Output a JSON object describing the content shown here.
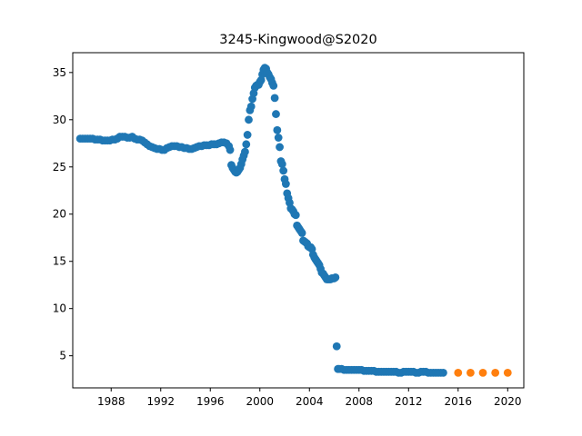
{
  "chart_data": {
    "type": "scatter",
    "title": "3245-Kingwood@S2020",
    "xlabel": "",
    "ylabel": "",
    "xlim": [
      1984.9,
      2021.3
    ],
    "ylim": [
      1.6,
      37.1
    ],
    "x_ticks": [
      1988,
      1992,
      1996,
      2000,
      2004,
      2008,
      2012,
      2016,
      2020
    ],
    "y_ticks": [
      5,
      10,
      15,
      20,
      25,
      30,
      35
    ],
    "grid": false,
    "series": [
      {
        "color": "#1f77b4",
        "x": [
          1985.5,
          1985.7,
          1985.9,
          1986.1,
          1986.3,
          1986.5,
          1986.7,
          1986.9,
          1987.1,
          1987.3,
          1987.5,
          1987.7,
          1987.9,
          1988.1,
          1988.3,
          1988.5,
          1988.7,
          1988.9,
          1989.1,
          1989.3,
          1989.5,
          1989.7,
          1989.9,
          1990.1,
          1990.3,
          1990.5,
          1990.7,
          1990.9,
          1991.1,
          1991.3,
          1991.5,
          1991.7,
          1991.9,
          1992.1,
          1992.3,
          1992.5,
          1992.7,
          1992.9,
          1993.1,
          1993.3,
          1993.5,
          1993.7,
          1993.9,
          1994.1,
          1994.3,
          1994.5,
          1994.7,
          1994.9,
          1995.1,
          1995.3,
          1995.5,
          1995.7,
          1995.9,
          1996.1,
          1996.3,
          1996.5,
          1996.7,
          1996.9,
          1997.1,
          1997.3,
          1997.5,
          1997.6,
          1997.7,
          1997.8,
          1997.9,
          1998.0,
          1998.1,
          1998.2,
          1998.3,
          1998.4,
          1998.5,
          1998.6,
          1998.7,
          1998.8,
          1998.9,
          1999.0,
          1999.1,
          1999.2,
          1999.3,
          1999.4,
          1999.5,
          1999.6,
          1999.7,
          1999.8,
          1999.9,
          2000.0,
          2000.1,
          2000.2,
          2000.3,
          2000.4,
          2000.5,
          2000.6,
          2000.7,
          2000.8,
          2000.9,
          2001.0,
          2001.1,
          2001.2,
          2001.3,
          2001.4,
          2001.5,
          2001.6,
          2001.7,
          2001.8,
          2001.9,
          2002.0,
          2002.1,
          2002.2,
          2002.3,
          2002.4,
          2002.5,
          2002.6,
          2002.7,
          2002.8,
          2002.9,
          2003.0,
          2003.1,
          2003.2,
          2003.3,
          2003.4,
          2003.5,
          2003.6,
          2003.7,
          2003.8,
          2003.9,
          2004.0,
          2004.1,
          2004.2,
          2004.3,
          2004.4,
          2004.5,
          2004.6,
          2004.7,
          2004.8,
          2004.9,
          2005.0,
          2005.1,
          2005.2,
          2005.3,
          2005.4,
          2005.5,
          2005.6,
          2005.7,
          2005.8,
          2005.9,
          2006.0,
          2006.1,
          2006.2,
          2006.3,
          2006.4,
          2006.6,
          2006.8,
          2007.0,
          2007.2,
          2007.4,
          2007.6,
          2007.8,
          2008.0,
          2008.2,
          2008.4,
          2008.6,
          2008.8,
          2009.0,
          2009.2,
          2009.4,
          2009.6,
          2009.8,
          2010.0,
          2010.2,
          2010.4,
          2010.6,
          2010.8,
          2011.0,
          2011.2,
          2011.4,
          2011.6,
          2011.8,
          2012.0,
          2012.2,
          2012.4,
          2012.6,
          2012.8,
          2013.0,
          2013.2,
          2013.4,
          2013.6,
          2013.8,
          2014.0,
          2014.2,
          2014.4,
          2014.6,
          2014.8
        ],
        "y": [
          28.0,
          28.0,
          28.0,
          28.0,
          28.0,
          28.0,
          27.9,
          27.9,
          27.9,
          27.8,
          27.8,
          27.8,
          27.8,
          27.9,
          27.9,
          28.0,
          28.2,
          28.2,
          28.2,
          28.1,
          28.1,
          28.2,
          28.0,
          27.9,
          27.9,
          27.8,
          27.6,
          27.4,
          27.2,
          27.1,
          27.0,
          26.9,
          26.9,
          26.8,
          26.8,
          27.0,
          27.1,
          27.2,
          27.2,
          27.2,
          27.1,
          27.1,
          27.0,
          27.0,
          26.9,
          26.9,
          27.0,
          27.1,
          27.2,
          27.2,
          27.3,
          27.3,
          27.3,
          27.4,
          27.4,
          27.4,
          27.5,
          27.6,
          27.6,
          27.5,
          27.2,
          26.8,
          25.2,
          24.9,
          24.7,
          24.5,
          24.4,
          24.5,
          24.7,
          24.9,
          25.3,
          25.8,
          26.2,
          26.6,
          27.4,
          28.4,
          30.0,
          31.0,
          31.4,
          32.2,
          32.8,
          33.4,
          33.6,
          33.7,
          33.7,
          34.0,
          34.2,
          34.8,
          35.3,
          35.5,
          35.4,
          35.0,
          34.8,
          34.5,
          34.3,
          33.9,
          33.6,
          32.3,
          30.6,
          28.9,
          28.1,
          27.1,
          25.6,
          25.3,
          24.6,
          23.7,
          23.2,
          22.2,
          21.7,
          21.2,
          20.6,
          20.5,
          20.3,
          20.0,
          19.9,
          18.8,
          18.6,
          18.4,
          18.2,
          18.0,
          17.2,
          17.1,
          17.0,
          16.9,
          16.6,
          16.5,
          16.5,
          16.3,
          15.7,
          15.4,
          15.2,
          15.0,
          14.8,
          14.6,
          14.2,
          13.8,
          13.7,
          13.5,
          13.3,
          13.1,
          13.1,
          13.1,
          13.1,
          13.2,
          13.2,
          13.2,
          13.3,
          6.0,
          3.6,
          3.6,
          3.6,
          3.5,
          3.5,
          3.5,
          3.5,
          3.5,
          3.5,
          3.5,
          3.5,
          3.4,
          3.4,
          3.4,
          3.4,
          3.4,
          3.3,
          3.3,
          3.3,
          3.3,
          3.3,
          3.3,
          3.3,
          3.3,
          3.3,
          3.2,
          3.2,
          3.3,
          3.3,
          3.3,
          3.3,
          3.3,
          3.2,
          3.2,
          3.3,
          3.3,
          3.3,
          3.2,
          3.2,
          3.2,
          3.2,
          3.2,
          3.2,
          3.2
        ]
      },
      {
        "color": "#ff7f0e",
        "x": [
          2016,
          2017,
          2018,
          2019,
          2020
        ],
        "y": [
          3.2,
          3.2,
          3.2,
          3.2,
          3.2
        ]
      }
    ]
  }
}
